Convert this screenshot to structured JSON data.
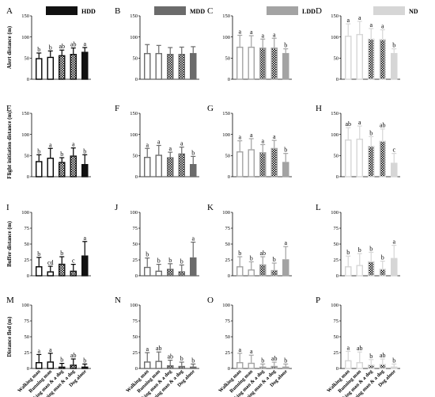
{
  "legend": [
    {
      "key": "hdd",
      "label": "HDD",
      "color": "#111111"
    },
    {
      "key": "mdd",
      "label": "MDD",
      "color": "#6b6b6b"
    },
    {
      "key": "ldd",
      "label": "LDD",
      "color": "#a3a3a3"
    },
    {
      "key": "nd",
      "label": "ND",
      "color": "#d6d6d6"
    }
  ],
  "row_titles": [
    "Alert distance (m)",
    "Flight initiation distance (m)",
    "Buffer distance (m)",
    "Distance fled (m)"
  ],
  "row_yticks": [
    [
      "0",
      "50",
      "100",
      "150"
    ],
    [
      "0",
      "50",
      "100",
      "150"
    ],
    [
      "0",
      "25",
      "50",
      "75",
      "100"
    ],
    [
      "0",
      "25",
      "50",
      "75",
      "100"
    ]
  ],
  "categories": [
    "Walking man",
    "Running man",
    "Walking man & a dog",
    "Running man & a dog",
    "Dog alone"
  ],
  "chart_data": [
    {
      "panel": "A",
      "type": "bar",
      "group": "HDD",
      "metric": "Alert distance (m)",
      "ylim": [
        0,
        150
      ],
      "values": [
        50,
        53,
        57,
        60,
        65
      ],
      "errors": [
        12,
        14,
        12,
        14,
        10
      ],
      "letters": [
        "b",
        "b",
        "ab",
        "ab",
        "a"
      ]
    },
    {
      "panel": "B",
      "type": "bar",
      "group": "MDD",
      "metric": "Alert distance (m)",
      "ylim": [
        0,
        150
      ],
      "values": [
        62,
        62,
        60,
        60,
        62
      ],
      "errors": [
        20,
        18,
        15,
        16,
        15
      ],
      "letters": [
        "",
        "",
        "",
        "",
        ""
      ]
    },
    {
      "panel": "C",
      "type": "bar",
      "group": "LDD",
      "metric": "Alert distance (m)",
      "ylim": [
        0,
        150
      ],
      "values": [
        77,
        77,
        75,
        75,
        62
      ],
      "errors": [
        27,
        26,
        20,
        22,
        10
      ],
      "letters": [
        "a",
        "a",
        "a",
        "a",
        "b"
      ]
    },
    {
      "panel": "D",
      "type": "bar",
      "group": "ND",
      "metric": "Alert distance (m)",
      "ylim": [
        0,
        150
      ],
      "values": [
        103,
        107,
        96,
        95,
        62
      ],
      "errors": [
        28,
        30,
        24,
        22,
        10
      ],
      "letters": [
        "a",
        "a",
        "a",
        "a",
        "b"
      ]
    },
    {
      "panel": "E",
      "type": "bar",
      "group": "HDD",
      "metric": "Flight initiation distance (m)",
      "ylim": [
        0,
        150
      ],
      "values": [
        37,
        45,
        35,
        50,
        30
      ],
      "errors": [
        15,
        22,
        10,
        18,
        22
      ],
      "letters": [
        "b",
        "a",
        "b",
        "a",
        "b"
      ]
    },
    {
      "panel": "F",
      "type": "bar",
      "group": "MDD",
      "metric": "Flight initiation distance (m)",
      "ylim": [
        0,
        150
      ],
      "values": [
        47,
        52,
        46,
        55,
        30
      ],
      "errors": [
        20,
        22,
        12,
        15,
        18
      ],
      "letters": [
        "a",
        "a",
        "a",
        "a",
        "b"
      ]
    },
    {
      "panel": "G",
      "type": "bar",
      "group": "LDD",
      "metric": "Flight initiation distance (m)",
      "ylim": [
        0,
        150
      ],
      "values": [
        60,
        65,
        58,
        68,
        35
      ],
      "errors": [
        25,
        25,
        18,
        18,
        20
      ],
      "letters": [
        "a",
        "a",
        "a",
        "a",
        "b"
      ]
    },
    {
      "panel": "H",
      "type": "bar",
      "group": "ND",
      "metric": "Flight initiation distance (m)",
      "ylim": [
        0,
        150
      ],
      "values": [
        88,
        90,
        73,
        85,
        33
      ],
      "errors": [
        28,
        30,
        22,
        28,
        22
      ],
      "letters": [
        "ab",
        "a",
        "b",
        "ab",
        "c"
      ]
    },
    {
      "panel": "I",
      "type": "bar",
      "group": "HDD",
      "metric": "Buffer distance (m)",
      "ylim": [
        0,
        100
      ],
      "values": [
        15,
        7,
        19,
        8,
        32
      ],
      "errors": [
        14,
        8,
        11,
        10,
        22
      ],
      "letters": [
        "b",
        "cd",
        "b",
        "c",
        "a"
      ]
    },
    {
      "panel": "J",
      "type": "bar",
      "group": "MDD",
      "metric": "Buffer distance (m)",
      "ylim": [
        0,
        100
      ],
      "values": [
        14,
        8,
        11,
        7,
        29
      ],
      "errors": [
        14,
        10,
        8,
        10,
        24
      ],
      "letters": [
        "b",
        "b",
        "b",
        "b",
        "a"
      ]
    },
    {
      "panel": "K",
      "type": "bar",
      "group": "LDD",
      "metric": "Buffer distance (m)",
      "ylim": [
        0,
        100
      ],
      "values": [
        15,
        10,
        18,
        9,
        26
      ],
      "errors": [
        15,
        12,
        12,
        11,
        20
      ],
      "letters": [
        "b",
        "b",
        "ab",
        "b",
        "a"
      ]
    },
    {
      "panel": "L",
      "type": "bar",
      "group": "ND",
      "metric": "Buffer distance (m)",
      "ylim": [
        0,
        100
      ],
      "values": [
        15,
        17,
        23,
        11,
        28
      ],
      "errors": [
        16,
        18,
        14,
        12,
        20
      ],
      "letters": [
        "b",
        "b",
        "b",
        "b",
        "a"
      ]
    },
    {
      "panel": "M",
      "type": "bar",
      "group": "HDD",
      "metric": "Distance fled (m)",
      "ylim": [
        0,
        100
      ],
      "values": [
        10,
        11,
        3,
        6,
        3
      ],
      "errors": [
        12,
        13,
        5,
        9,
        4
      ],
      "letters": [
        "a",
        "a",
        "b",
        "ab",
        "b"
      ]
    },
    {
      "panel": "N",
      "type": "bar",
      "group": "MDD",
      "metric": "Distance fled (m)",
      "ylim": [
        0,
        100
      ],
      "values": [
        11,
        12,
        5,
        4,
        3
      ],
      "errors": [
        14,
        14,
        8,
        6,
        4
      ],
      "letters": [
        "a",
        "ab",
        "ab",
        "b",
        "b"
      ]
    },
    {
      "panel": "O",
      "type": "bar",
      "group": "LDD",
      "metric": "Distance fled (m)",
      "ylim": [
        0,
        100
      ],
      "values": [
        10,
        9,
        3,
        4,
        3
      ],
      "errors": [
        14,
        12,
        4,
        6,
        4
      ],
      "letters": [
        "a",
        "a",
        "b",
        "ab",
        "b"
      ]
    },
    {
      "panel": "P",
      "type": "bar",
      "group": "ND",
      "metric": "Distance fled (m)",
      "ylim": [
        0,
        100
      ],
      "values": [
        13,
        10,
        6,
        7,
        3
      ],
      "errors": [
        14,
        16,
        8,
        8,
        4
      ],
      "letters": [
        "a",
        "ab",
        "b",
        "ab",
        "b"
      ]
    }
  ]
}
